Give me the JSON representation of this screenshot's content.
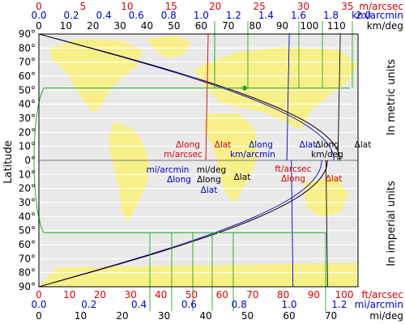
{
  "chart_data": {
    "type": "line",
    "title": "",
    "ylabel": "Latitude",
    "right_labels": {
      "top": "In metric units",
      "bottom": "In imperial units"
    },
    "colors": {
      "red": "#dd0000",
      "blue": "#0000cc",
      "black": "#000000",
      "green": "#22aa22",
      "land": "#f7f089",
      "sea": "#e9e9e9"
    },
    "latitude": {
      "top_half_ticks": [
        "90°",
        "80°",
        "70°",
        "60°",
        "50°",
        "40°",
        "30°",
        "20°",
        "10°",
        "0°"
      ],
      "bottom_half_ticks": [
        "10°",
        "20°",
        "30°",
        "40°",
        "50°",
        "60°",
        "70°",
        "80°",
        "90°"
      ]
    },
    "top_axes": [
      {
        "unit": "m/arcsec",
        "color": "red",
        "ticks": [
          "0",
          "5",
          "10",
          "15",
          "20",
          "25",
          "30",
          "35"
        ],
        "step": 5
      },
      {
        "unit": "km/arcmin",
        "color": "blue",
        "ticks": [
          "0.0",
          "0.2",
          "0.4",
          "0.6",
          "0.8",
          "1.0",
          "1.2",
          "1.4",
          "1.6",
          "1.8",
          "2.0"
        ],
        "step": 0.2
      },
      {
        "unit": "km/deg",
        "color": "black",
        "ticks": [
          "0",
          "10",
          "20",
          "30",
          "40",
          "50",
          "60",
          "70",
          "80",
          "90",
          "100",
          "110"
        ],
        "step": 10
      }
    ],
    "bottom_axes": [
      {
        "unit": "ft/arcsec",
        "color": "red",
        "ticks": [
          "0",
          "10",
          "20",
          "30",
          "40",
          "50",
          "60",
          "70",
          "80",
          "90",
          "100"
        ],
        "step": 10
      },
      {
        "unit": "mi/arcmin",
        "color": "blue",
        "ticks": [
          "0.0",
          "0.2",
          "0.4",
          "0.6",
          "0.8",
          "1.0",
          "1.2"
        ],
        "step": 0.2
      },
      {
        "unit": "mi/deg",
        "color": "black",
        "ticks": [
          "0",
          "10",
          "20",
          "30",
          "40",
          "50",
          "60",
          "70"
        ],
        "step": 10
      }
    ],
    "km_per_deg_long_equator": 111.32,
    "km_per_deg_lat": 111.0,
    "mi_per_deg_long_equator": 69.17,
    "mi_per_deg_lat": 69.0,
    "annotations": {
      "metric": [
        {
          "text": "Δlong",
          "color": "red"
        },
        {
          "text": "m/arcsec",
          "color": "red"
        },
        {
          "text": "Δlat",
          "color": "red"
        },
        {
          "text": "Δlong",
          "color": "blue"
        },
        {
          "text": "km/arcmin",
          "color": "blue"
        },
        {
          "text": "Δlat",
          "color": "blue"
        },
        {
          "text": "Δlong",
          "color": "black"
        },
        {
          "text": "km/deg",
          "color": "black"
        },
        {
          "text": "Δlat",
          "color": "black"
        }
      ],
      "imperial": [
        {
          "text": "mi/arcmin",
          "color": "blue"
        },
        {
          "text": "Δlong",
          "color": "blue"
        },
        {
          "text": "mi/deg",
          "color": "black"
        },
        {
          "text": "Δlong",
          "color": "black"
        },
        {
          "text": "Δlat",
          "color": "blue"
        },
        {
          "text": "Δlat",
          "color": "black"
        },
        {
          "text": "ft/arcsec",
          "color": "red"
        },
        {
          "text": "Δlong",
          "color": "red"
        },
        {
          "text": "Δlat",
          "color": "red"
        }
      ]
    },
    "example_latitude": 51.5
  }
}
